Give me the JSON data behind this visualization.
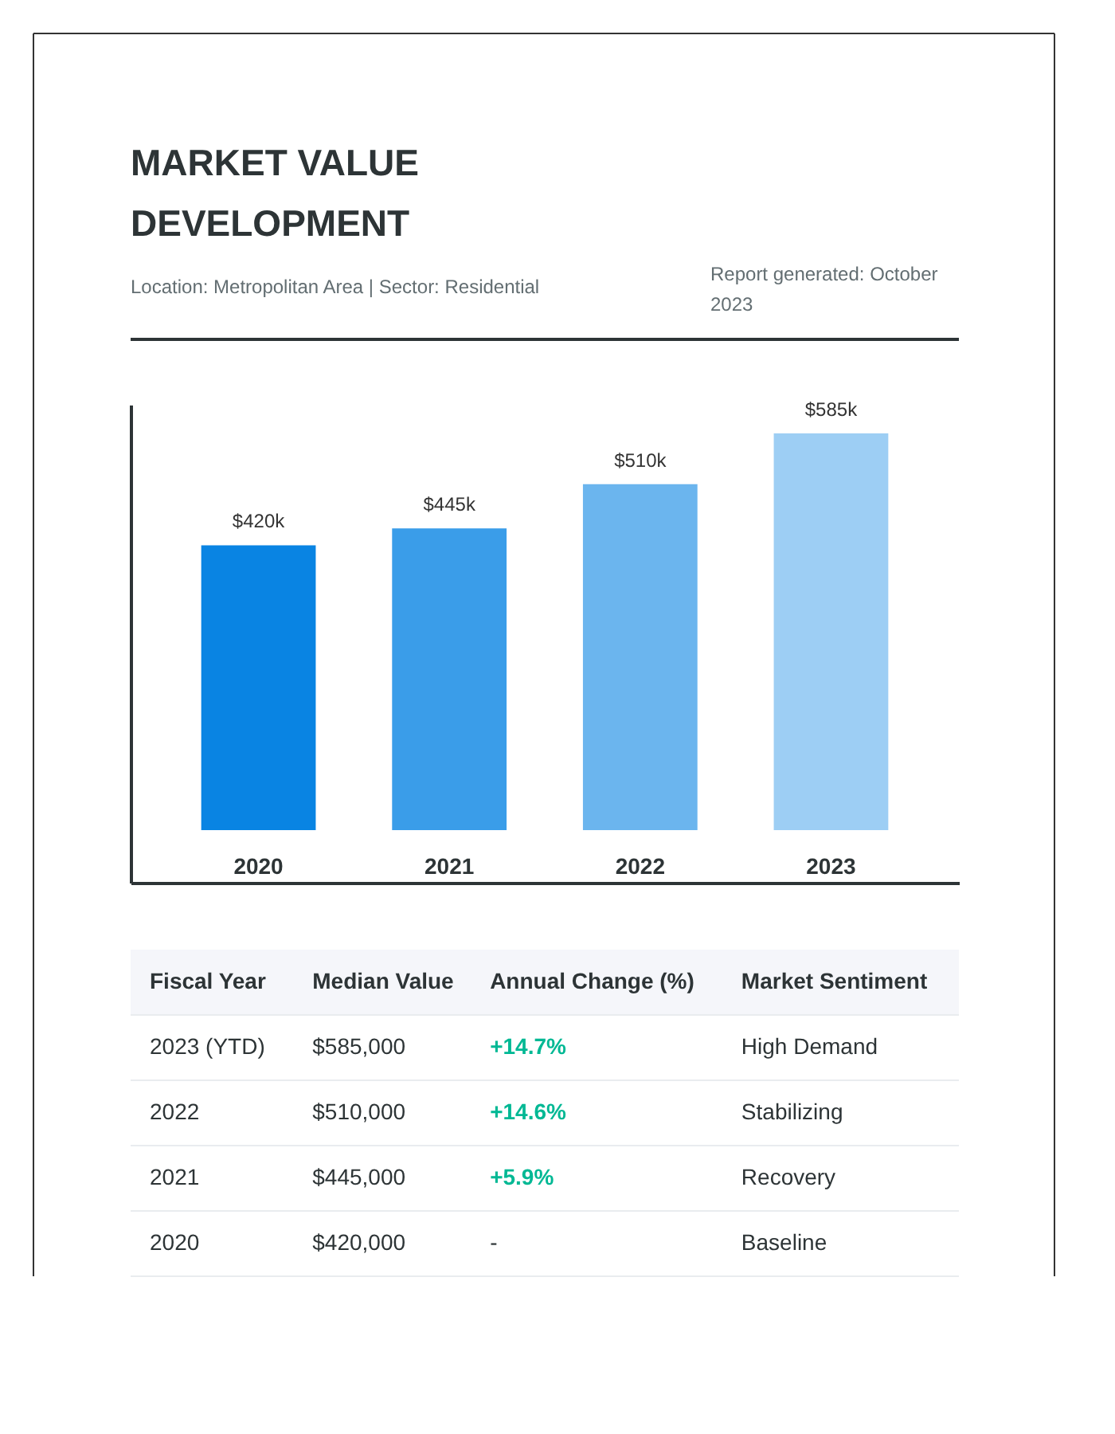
{
  "chart_data": [
    {
      "type": "bar",
      "title": "MARKET VALUE DEVELOPMENT",
      "subtitle": "Location: Metropolitan Area | Sector: Residential",
      "annotations": [
        "Report generated: October 2023"
      ],
      "categories": [
        "2020",
        "2021",
        "2022",
        "2023"
      ],
      "values": [
        420,
        445,
        510,
        585
      ],
      "colors": [
        "#0984e3",
        "#3a9de9",
        "#6bb5ee",
        "#9dcef4"
      ],
      "value_labels": [
        "$420k",
        "$445k",
        "$510k",
        "$585k"
      ],
      "tick_labels": "x"
    },
    {
      "type": "other",
      "categories": [
        "Fiscal Year",
        "Median Value",
        "Annual Change (%)",
        "Market Sentiment"
      ],
      "annotations": [
        "2023 (YTD)",
        "$585,000",
        "+14.7%",
        "High Demand",
        "2022",
        "$510,000",
        "+14.6%",
        "Stabilizing",
        "2021",
        "$445,000",
        "+5.9%",
        "Recovery",
        "2020",
        "$420,000",
        "-",
        "Baseline"
      ],
      "colors": [
        "#2d3436",
        "#2d3436",
        "#00b894",
        "#2d3436",
        "#2d3436",
        "#2d3436",
        "#00b894",
        "#2d3436",
        "#2d3436",
        "#2d3436",
        "#00b894",
        "#2d3436",
        "#2d3436",
        "#2d3436",
        "#2d3436",
        "#2d3436"
      ]
    }
  ]
}
